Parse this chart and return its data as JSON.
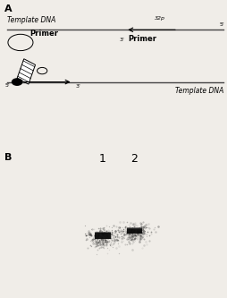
{
  "panel_A_label": "A",
  "panel_B_label": "B",
  "template_dna_top_label": "Template DNA",
  "template_dna_bottom_label": "Template DNA",
  "primer_label_left": "Primer",
  "primer_label_right": "Primer",
  "label_32p": "32p",
  "label_3prime_left": "3'",
  "label_3prime_right": "3'",
  "label_5prime_left": "5'",
  "label_5prime_right": "5'",
  "label_1": "1",
  "label_2": "2",
  "bg_color": "#f0ede8",
  "line_color": "#444444"
}
